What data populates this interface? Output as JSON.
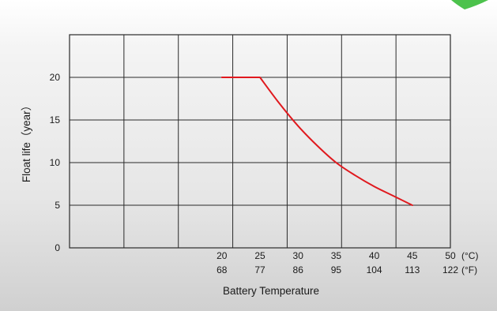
{
  "chart_data": {
    "type": "line",
    "title": "",
    "xlabel": "Battery Temperature",
    "ylabel": "Float life（year）",
    "x_unit_c": "(°C)",
    "x_unit_f": "(°F)",
    "xlim": [
      0,
      50
    ],
    "ylim": [
      0,
      25
    ],
    "x_ticks_c": [
      "20",
      "25",
      "30",
      "35",
      "40",
      "45",
      "50"
    ],
    "x_ticks_f": [
      "68",
      "77",
      "86",
      "95",
      "104",
      "113",
      "122"
    ],
    "x_tick_values": [
      20,
      25,
      30,
      35,
      40,
      45,
      50
    ],
    "y_ticks": [
      "0",
      "5",
      "10",
      "15",
      "20"
    ],
    "y_tick_values": [
      0,
      5,
      10,
      15,
      20
    ],
    "grid": true,
    "series": [
      {
        "color": "#e0191e",
        "x": [
          20,
          25,
          27.5,
          30,
          32.5,
          35,
          37.5,
          40,
          42.5,
          45
        ],
        "y": [
          20,
          20,
          17,
          14.3,
          12,
          10,
          8.5,
          7.2,
          6.1,
          5
        ]
      }
    ]
  },
  "colors": {
    "accent": "#4cc24c"
  }
}
